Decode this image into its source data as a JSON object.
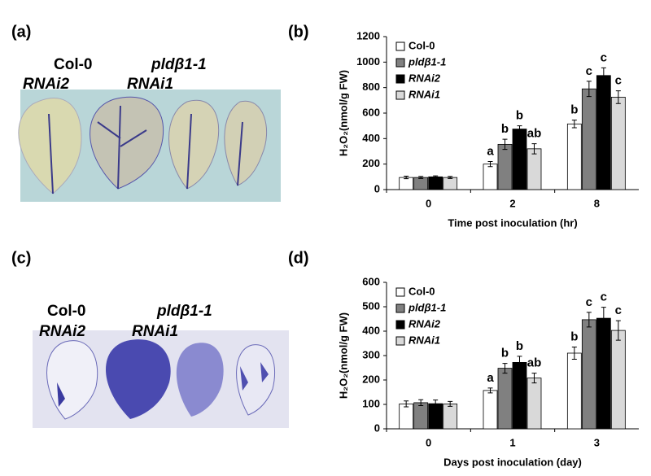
{
  "panels": {
    "a": "(a)",
    "b": "(b)",
    "c": "(c)",
    "d": "(d)"
  },
  "photos": [
    {
      "labels": [
        "Col-0",
        "pldβ1-1",
        "RNAi2",
        "RNAi1"
      ]
    },
    {
      "labels": [
        "Col-0",
        "pldβ1-1",
        "RNAi2",
        "RNAi1"
      ]
    }
  ],
  "chart_data": [
    {
      "type": "bar",
      "ylabel": "H₂O₂(nmol/g FW)",
      "xlabel": "Time post inoculation (hr)",
      "categories": [
        "0",
        "2",
        "8"
      ],
      "ylim": [
        0,
        1200
      ],
      "yticks": [
        0,
        200,
        400,
        600,
        800,
        1000,
        1200
      ],
      "grid": false,
      "legend": "upper-left",
      "series": [
        {
          "name": "Col-0",
          "color": "#ffffff",
          "values": [
            95,
            200,
            515
          ],
          "errors": [
            10,
            20,
            30
          ],
          "letters": [
            null,
            "a",
            "b"
          ]
        },
        {
          "name": "pldβ1-1",
          "color": "#808080",
          "values": [
            95,
            355,
            790
          ],
          "errors": [
            8,
            40,
            60
          ],
          "letters": [
            null,
            "b",
            "c"
          ]
        },
        {
          "name": "RNAi2",
          "color": "#000000",
          "values": [
            100,
            475,
            895
          ],
          "errors": [
            8,
            25,
            60
          ],
          "letters": [
            null,
            "b",
            "c"
          ]
        },
        {
          "name": "RNAi1",
          "color": "#d9d9d9",
          "values": [
            95,
            320,
            725
          ],
          "errors": [
            8,
            40,
            50
          ],
          "letters": [
            null,
            "ab",
            "c"
          ]
        }
      ]
    },
    {
      "type": "bar",
      "ylabel": "H₂O₂(nmol/g FW)",
      "xlabel": "Days post inoculation (day)",
      "categories": [
        "0",
        "1",
        "3"
      ],
      "ylim": [
        0,
        600
      ],
      "yticks": [
        0,
        100,
        200,
        300,
        400,
        500,
        600
      ],
      "grid": false,
      "legend": "upper-left",
      "series": [
        {
          "name": "Col-0",
          "color": "#ffffff",
          "values": [
            102,
            157,
            310
          ],
          "errors": [
            12,
            10,
            25
          ],
          "letters": [
            null,
            "a",
            "b"
          ]
        },
        {
          "name": "pldβ1-1",
          "color": "#808080",
          "values": [
            107,
            248,
            447
          ],
          "errors": [
            12,
            20,
            30
          ],
          "letters": [
            null,
            "b",
            "c"
          ]
        },
        {
          "name": "RNAi2",
          "color": "#000000",
          "values": [
            103,
            272,
            453
          ],
          "errors": [
            15,
            25,
            45
          ],
          "letters": [
            null,
            "b",
            "c"
          ]
        },
        {
          "name": "RNAi1",
          "color": "#d9d9d9",
          "values": [
            102,
            208,
            403
          ],
          "errors": [
            10,
            20,
            40
          ],
          "letters": [
            null,
            "ab",
            "c"
          ]
        }
      ]
    }
  ]
}
